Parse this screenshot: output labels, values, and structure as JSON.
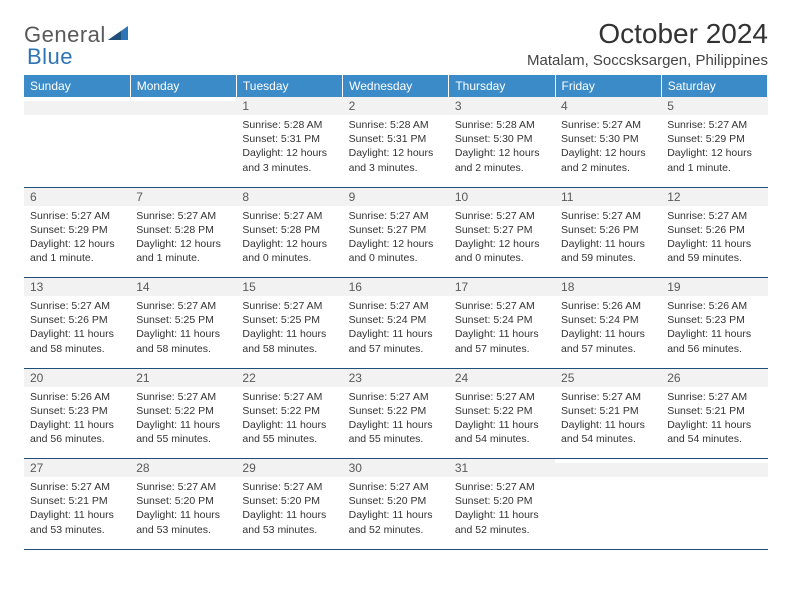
{
  "logo": {
    "part1": "General",
    "part2": "Blue"
  },
  "title": "October 2024",
  "location": "Matalam, Soccsksargen, Philippines",
  "colors": {
    "header_bg": "#3b8bc9",
    "header_text": "#ffffff",
    "daynum_bg": "#f2f2f2",
    "daynum_text": "#595959",
    "border": "#1f4e79",
    "logo_gray": "#595959",
    "logo_blue": "#2e75b6"
  },
  "weekdays": [
    "Sunday",
    "Monday",
    "Tuesday",
    "Wednesday",
    "Thursday",
    "Friday",
    "Saturday"
  ],
  "weeks": [
    [
      {
        "num": "",
        "text": ""
      },
      {
        "num": "",
        "text": ""
      },
      {
        "num": "1",
        "text": "Sunrise: 5:28 AM\nSunset: 5:31 PM\nDaylight: 12 hours and 3 minutes."
      },
      {
        "num": "2",
        "text": "Sunrise: 5:28 AM\nSunset: 5:31 PM\nDaylight: 12 hours and 3 minutes."
      },
      {
        "num": "3",
        "text": "Sunrise: 5:28 AM\nSunset: 5:30 PM\nDaylight: 12 hours and 2 minutes."
      },
      {
        "num": "4",
        "text": "Sunrise: 5:27 AM\nSunset: 5:30 PM\nDaylight: 12 hours and 2 minutes."
      },
      {
        "num": "5",
        "text": "Sunrise: 5:27 AM\nSunset: 5:29 PM\nDaylight: 12 hours and 1 minute."
      }
    ],
    [
      {
        "num": "6",
        "text": "Sunrise: 5:27 AM\nSunset: 5:29 PM\nDaylight: 12 hours and 1 minute."
      },
      {
        "num": "7",
        "text": "Sunrise: 5:27 AM\nSunset: 5:28 PM\nDaylight: 12 hours and 1 minute."
      },
      {
        "num": "8",
        "text": "Sunrise: 5:27 AM\nSunset: 5:28 PM\nDaylight: 12 hours and 0 minutes."
      },
      {
        "num": "9",
        "text": "Sunrise: 5:27 AM\nSunset: 5:27 PM\nDaylight: 12 hours and 0 minutes."
      },
      {
        "num": "10",
        "text": "Sunrise: 5:27 AM\nSunset: 5:27 PM\nDaylight: 12 hours and 0 minutes."
      },
      {
        "num": "11",
        "text": "Sunrise: 5:27 AM\nSunset: 5:26 PM\nDaylight: 11 hours and 59 minutes."
      },
      {
        "num": "12",
        "text": "Sunrise: 5:27 AM\nSunset: 5:26 PM\nDaylight: 11 hours and 59 minutes."
      }
    ],
    [
      {
        "num": "13",
        "text": "Sunrise: 5:27 AM\nSunset: 5:26 PM\nDaylight: 11 hours and 58 minutes."
      },
      {
        "num": "14",
        "text": "Sunrise: 5:27 AM\nSunset: 5:25 PM\nDaylight: 11 hours and 58 minutes."
      },
      {
        "num": "15",
        "text": "Sunrise: 5:27 AM\nSunset: 5:25 PM\nDaylight: 11 hours and 58 minutes."
      },
      {
        "num": "16",
        "text": "Sunrise: 5:27 AM\nSunset: 5:24 PM\nDaylight: 11 hours and 57 minutes."
      },
      {
        "num": "17",
        "text": "Sunrise: 5:27 AM\nSunset: 5:24 PM\nDaylight: 11 hours and 57 minutes."
      },
      {
        "num": "18",
        "text": "Sunrise: 5:26 AM\nSunset: 5:24 PM\nDaylight: 11 hours and 57 minutes."
      },
      {
        "num": "19",
        "text": "Sunrise: 5:26 AM\nSunset: 5:23 PM\nDaylight: 11 hours and 56 minutes."
      }
    ],
    [
      {
        "num": "20",
        "text": "Sunrise: 5:26 AM\nSunset: 5:23 PM\nDaylight: 11 hours and 56 minutes."
      },
      {
        "num": "21",
        "text": "Sunrise: 5:27 AM\nSunset: 5:22 PM\nDaylight: 11 hours and 55 minutes."
      },
      {
        "num": "22",
        "text": "Sunrise: 5:27 AM\nSunset: 5:22 PM\nDaylight: 11 hours and 55 minutes."
      },
      {
        "num": "23",
        "text": "Sunrise: 5:27 AM\nSunset: 5:22 PM\nDaylight: 11 hours and 55 minutes."
      },
      {
        "num": "24",
        "text": "Sunrise: 5:27 AM\nSunset: 5:22 PM\nDaylight: 11 hours and 54 minutes."
      },
      {
        "num": "25",
        "text": "Sunrise: 5:27 AM\nSunset: 5:21 PM\nDaylight: 11 hours and 54 minutes."
      },
      {
        "num": "26",
        "text": "Sunrise: 5:27 AM\nSunset: 5:21 PM\nDaylight: 11 hours and 54 minutes."
      }
    ],
    [
      {
        "num": "27",
        "text": "Sunrise: 5:27 AM\nSunset: 5:21 PM\nDaylight: 11 hours and 53 minutes."
      },
      {
        "num": "28",
        "text": "Sunrise: 5:27 AM\nSunset: 5:20 PM\nDaylight: 11 hours and 53 minutes."
      },
      {
        "num": "29",
        "text": "Sunrise: 5:27 AM\nSunset: 5:20 PM\nDaylight: 11 hours and 53 minutes."
      },
      {
        "num": "30",
        "text": "Sunrise: 5:27 AM\nSunset: 5:20 PM\nDaylight: 11 hours and 52 minutes."
      },
      {
        "num": "31",
        "text": "Sunrise: 5:27 AM\nSunset: 5:20 PM\nDaylight: 11 hours and 52 minutes."
      },
      {
        "num": "",
        "text": ""
      },
      {
        "num": "",
        "text": ""
      }
    ]
  ]
}
